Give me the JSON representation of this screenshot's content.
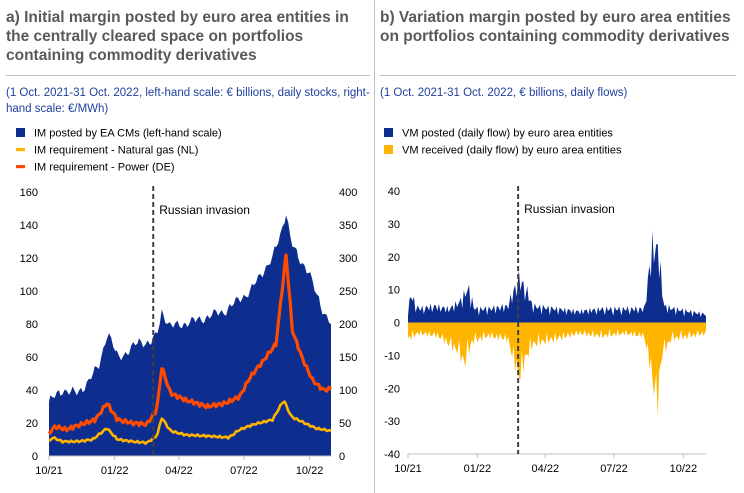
{
  "panels": {
    "a": {
      "title": "a) Initial margin posted by euro area entities in the centrally cleared space on portfolios containing commodity derivatives",
      "subtitle": "(1 Oct. 2021-31 Oct. 2022, left-hand scale: € billions, daily stocks, right-hand scale: €/MWh)"
    },
    "b": {
      "title": "b) Variation margin posted by euro area entities on portfolios containing commodity derivatives",
      "subtitle": "(1 Oct. 2021-31 Oct. 2022, € billions, daily flows)"
    }
  },
  "colors": {
    "navy": "#0d2d8f",
    "yellow": "#ffb400",
    "orange": "#ff4b00",
    "axis": "#bfbfbf",
    "text": "#000000",
    "dashed": "#404040"
  },
  "chart_data": [
    {
      "type": "area",
      "x_start": "2021-10-01",
      "x_end": "2022-10-31",
      "xticks": [
        "10/21",
        "01/22",
        "04/22",
        "07/22",
        "10/22"
      ],
      "xtick_dates": [
        "2021-10-01",
        "2022-01-01",
        "2022-04-01",
        "2022-07-01",
        "2022-10-01"
      ],
      "ylim_left": [
        0,
        160
      ],
      "yticks_left": [
        0,
        20,
        40,
        60,
        80,
        100,
        120,
        140,
        160
      ],
      "ylim_right": [
        0,
        400
      ],
      "yticks_right": [
        0,
        50,
        100,
        150,
        200,
        250,
        300,
        350,
        400
      ],
      "grid": false,
      "legend_position": "top-left",
      "annotation": {
        "date": "2022-02-24",
        "label": "Russian invasion"
      },
      "series": [
        {
          "name": "IM posted by EA CMs (left-hand scale)",
          "type": "area",
          "axis": "left",
          "color": "#0d2d8f",
          "points": [
            [
              "2021-10-01",
              33
            ],
            [
              "2021-10-20",
              40
            ],
            [
              "2021-11-10",
              38
            ],
            [
              "2021-11-25",
              45
            ],
            [
              "2021-12-10",
              55
            ],
            [
              "2021-12-22",
              75
            ],
            [
              "2022-01-05",
              60
            ],
            [
              "2022-01-20",
              63
            ],
            [
              "2022-02-05",
              70
            ],
            [
              "2022-02-20",
              68
            ],
            [
              "2022-03-01",
              73
            ],
            [
              "2022-03-08",
              88
            ],
            [
              "2022-03-20",
              78
            ],
            [
              "2022-04-05",
              80
            ],
            [
              "2022-04-25",
              82
            ],
            [
              "2022-05-15",
              85
            ],
            [
              "2022-06-05",
              88
            ],
            [
              "2022-06-25",
              95
            ],
            [
              "2022-07-10",
              100
            ],
            [
              "2022-07-25",
              110
            ],
            [
              "2022-08-10",
              120
            ],
            [
              "2022-08-22",
              135
            ],
            [
              "2022-08-29",
              148
            ],
            [
              "2022-09-05",
              130
            ],
            [
              "2022-09-15",
              120
            ],
            [
              "2022-09-30",
              112
            ],
            [
              "2022-10-10",
              98
            ],
            [
              "2022-10-20",
              88
            ],
            [
              "2022-10-31",
              81
            ]
          ]
        },
        {
          "name": "IM requirement - Natural gas (NL)",
          "type": "line",
          "axis": "right",
          "color": "#ffb400",
          "points": [
            [
              "2021-10-01",
              22
            ],
            [
              "2021-10-06",
              28
            ],
            [
              "2021-10-20",
              22
            ],
            [
              "2021-11-10",
              22
            ],
            [
              "2021-12-01",
              25
            ],
            [
              "2021-12-21",
              42
            ],
            [
              "2022-01-05",
              25
            ],
            [
              "2022-01-25",
              22
            ],
            [
              "2022-02-15",
              20
            ],
            [
              "2022-03-01",
              30
            ],
            [
              "2022-03-08",
              58
            ],
            [
              "2022-03-20",
              38
            ],
            [
              "2022-04-10",
              32
            ],
            [
              "2022-05-15",
              30
            ],
            [
              "2022-06-10",
              28
            ],
            [
              "2022-06-25",
              40
            ],
            [
              "2022-07-15",
              48
            ],
            [
              "2022-08-10",
              55
            ],
            [
              "2022-08-26",
              85
            ],
            [
              "2022-09-05",
              60
            ],
            [
              "2022-09-20",
              52
            ],
            [
              "2022-10-10",
              42
            ],
            [
              "2022-10-31",
              38
            ]
          ]
        },
        {
          "name": "IM requirement - Power (DE)",
          "type": "line",
          "axis": "right",
          "color": "#ff4b00",
          "points": [
            [
              "2021-10-01",
              35
            ],
            [
              "2021-10-10",
              45
            ],
            [
              "2021-10-25",
              40
            ],
            [
              "2021-11-15",
              48
            ],
            [
              "2021-12-05",
              55
            ],
            [
              "2021-12-21",
              80
            ],
            [
              "2022-01-05",
              55
            ],
            [
              "2022-01-25",
              50
            ],
            [
              "2022-02-15",
              48
            ],
            [
              "2022-03-01",
              70
            ],
            [
              "2022-03-08",
              135
            ],
            [
              "2022-03-20",
              95
            ],
            [
              "2022-04-10",
              85
            ],
            [
              "2022-05-10",
              75
            ],
            [
              "2022-06-05",
              80
            ],
            [
              "2022-06-25",
              90
            ],
            [
              "2022-07-10",
              120
            ],
            [
              "2022-07-25",
              140
            ],
            [
              "2022-08-15",
              170
            ],
            [
              "2022-08-29",
              305
            ],
            [
              "2022-09-07",
              190
            ],
            [
              "2022-09-20",
              150
            ],
            [
              "2022-10-05",
              115
            ],
            [
              "2022-10-20",
              100
            ],
            [
              "2022-10-31",
              102
            ]
          ]
        }
      ]
    },
    {
      "type": "bar",
      "x_start": "2021-10-01",
      "x_end": "2022-10-31",
      "xticks": [
        "10/21",
        "01/22",
        "04/22",
        "07/22",
        "10/22"
      ],
      "xtick_dates": [
        "2021-10-01",
        "2022-01-01",
        "2022-04-01",
        "2022-07-01",
        "2022-10-01"
      ],
      "ylim": [
        -40,
        40
      ],
      "yticks": [
        -40,
        -30,
        -20,
        -10,
        0,
        10,
        20,
        30,
        40
      ],
      "grid": false,
      "legend_position": "top-left",
      "annotation": {
        "date": "2022-02-24",
        "label": "Russian invasion"
      },
      "series": [
        {
          "name": "VM posted (daily flow) by euro area entities",
          "color": "#0d2d8f",
          "points": [
            [
              "2021-10-01",
              5
            ],
            [
              "2021-10-05",
              10
            ],
            [
              "2021-10-15",
              5
            ],
            [
              "2021-11-05",
              6
            ],
            [
              "2021-11-25",
              5
            ],
            [
              "2021-12-10",
              8
            ],
            [
              "2021-12-20",
              13
            ],
            [
              "2021-12-28",
              5
            ],
            [
              "2022-01-15",
              5
            ],
            [
              "2022-02-10",
              6
            ],
            [
              "2022-02-25",
              16
            ],
            [
              "2022-03-07",
              12
            ],
            [
              "2022-03-15",
              6
            ],
            [
              "2022-04-15",
              5
            ],
            [
              "2022-05-15",
              4
            ],
            [
              "2022-06-15",
              5
            ],
            [
              "2022-07-15",
              5
            ],
            [
              "2022-08-10",
              5
            ],
            [
              "2022-08-22",
              30
            ],
            [
              "2022-08-30",
              25
            ],
            [
              "2022-09-05",
              6
            ],
            [
              "2022-09-20",
              5
            ],
            [
              "2022-10-10",
              4
            ],
            [
              "2022-10-31",
              3
            ]
          ]
        },
        {
          "name": "VM received (daily flow) by euro area entities",
          "color": "#ffb400",
          "points": [
            [
              "2021-10-01",
              -6
            ],
            [
              "2021-10-15",
              -4
            ],
            [
              "2021-11-10",
              -5
            ],
            [
              "2021-11-25",
              -8
            ],
            [
              "2021-12-05",
              -10
            ],
            [
              "2021-12-15",
              -15
            ],
            [
              "2021-12-25",
              -7
            ],
            [
              "2022-01-15",
              -5
            ],
            [
              "2022-02-10",
              -6
            ],
            [
              "2022-02-25",
              -20
            ],
            [
              "2022-03-05",
              -14
            ],
            [
              "2022-03-15",
              -8
            ],
            [
              "2022-04-15",
              -6
            ],
            [
              "2022-05-15",
              -4
            ],
            [
              "2022-06-15",
              -5
            ],
            [
              "2022-07-15",
              -4
            ],
            [
              "2022-08-10",
              -5
            ],
            [
              "2022-08-20",
              -18
            ],
            [
              "2022-08-27",
              -32
            ],
            [
              "2022-09-02",
              -12
            ],
            [
              "2022-09-15",
              -6
            ],
            [
              "2022-10-10",
              -5
            ],
            [
              "2022-10-31",
              -4
            ]
          ]
        }
      ]
    }
  ]
}
